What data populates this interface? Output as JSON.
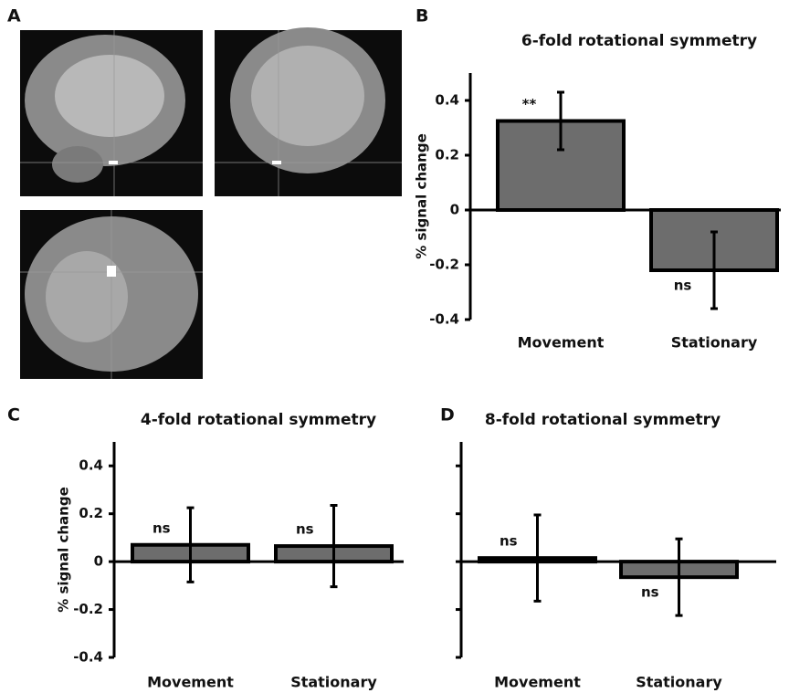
{
  "image_panel": {
    "label": "A"
  },
  "chart_data": [
    {
      "type": "bar",
      "panel": "B",
      "title": "6-fold rotational symmetry",
      "ylabel": "% signal change",
      "categories": [
        "Movement",
        "Stationary"
      ],
      "values": [
        0.325,
        -0.22
      ],
      "errors": [
        0.105,
        0.14
      ],
      "annotations": [
        "**",
        "ns"
      ],
      "color": "#6d6d6d",
      "ylim": [
        -0.4,
        0.5
      ],
      "yticks": [
        -0.4,
        -0.2,
        0,
        0.2,
        0.4
      ],
      "ytick_labels": true
    },
    {
      "type": "bar",
      "panel": "C",
      "title": "4-fold rotational symmetry",
      "ylabel": "% signal change",
      "categories": [
        "Movement",
        "Stationary"
      ],
      "values": [
        0.07,
        0.065
      ],
      "errors": [
        0.155,
        0.17
      ],
      "annotations": [
        "ns",
        "ns"
      ],
      "color": "#6d6d6d",
      "ylim": [
        -0.4,
        0.5
      ],
      "yticks": [
        -0.4,
        -0.2,
        0,
        0.2,
        0.4
      ],
      "ytick_labels": true
    },
    {
      "type": "bar",
      "panel": "D",
      "title": "8-fold rotational symmetry",
      "categories": [
        "Movement",
        "Stationary"
      ],
      "values": [
        0.015,
        -0.065
      ],
      "errors": [
        0.18,
        0.16
      ],
      "annotations": [
        "ns",
        "ns"
      ],
      "color": "#6d6d6d",
      "ylim": [
        -0.4,
        0.5
      ],
      "yticks": [
        -0.4,
        -0.2,
        0,
        0.2,
        0.4
      ],
      "ytick_labels": false
    }
  ]
}
